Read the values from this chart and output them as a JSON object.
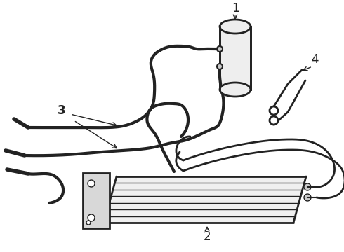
{
  "bg_color": "#ffffff",
  "line_color": "#222222",
  "label_color": "#000000",
  "fig_width": 4.9,
  "fig_height": 3.6,
  "dpi": 100,
  "label_fontsize": 12,
  "lw": 2.0,
  "thin_lw": 1.0
}
